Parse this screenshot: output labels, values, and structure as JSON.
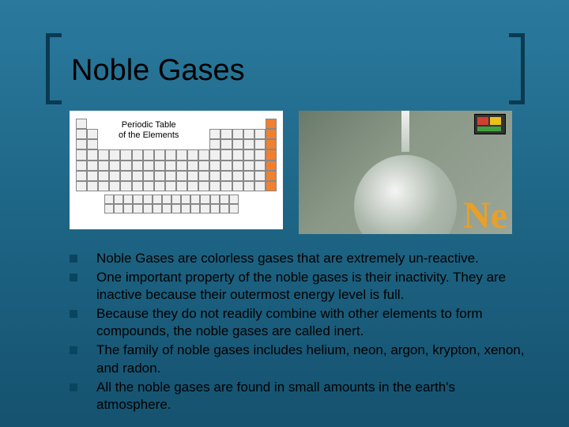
{
  "title": "Noble Gases",
  "periodic_table": {
    "label_line1": "Periodic Table",
    "label_line2": "of the Elements",
    "highlighted_column": 18,
    "colors": {
      "cell_border": "#888888",
      "cell_fill": "#f0f0f0",
      "highlight": "#f08030",
      "background": "#ffffff"
    }
  },
  "neon_image": {
    "symbol": "Ne",
    "symbol_color": "#e8a028",
    "background_gradient": [
      "#6a7a6a",
      "#9aa698"
    ],
    "legend_colors": [
      "#d04030",
      "#e8c020",
      "#40a040"
    ]
  },
  "bullets": [
    "Noble Gases are colorless gases that are extremely un-reactive.",
    "One important property of the noble gases is their inactivity. They are inactive because their outermost energy level is full.",
    "Because they do not readily combine with other elements to form compounds, the noble gases are called inert.",
    "The family of noble gases includes helium, neon, argon, krypton, xenon, and radon.",
    "All the noble gases are found in small amounts in the earth's atmosphere."
  ],
  "theme": {
    "background_gradient": [
      "#2a7a9e",
      "#1e6585",
      "#15526f"
    ],
    "bracket_color": "#0a3a52",
    "bullet_marker_color": "#0a4560",
    "title_color": "#000000",
    "text_color": "#000000",
    "title_fontsize": 38,
    "text_fontsize": 17
  }
}
